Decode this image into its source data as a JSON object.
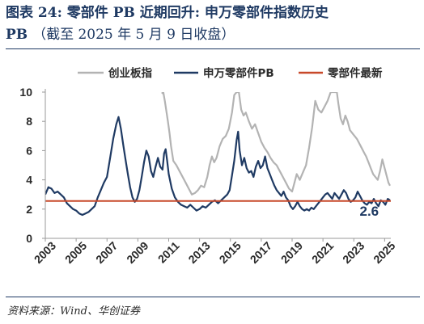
{
  "header": {
    "title_main": "图表 24:  零部件 PB 近期回升:  申万零部件指数历史",
    "title_prefix": "PB",
    "title_note": "（截至 2025 年 5 月 9 日收盘）"
  },
  "footer": {
    "source": "资料来源：Wind、华创证券"
  },
  "chart_data": {
    "type": "line",
    "title": "图表 24:  零部件 PB 近期回升:  申万零部件指数历史 PB（截至 2025 年 5 月 9 日收盘）",
    "xlabel": "",
    "ylabel": "",
    "xlim": [
      2003,
      2025.4
    ],
    "ylim": [
      0,
      10
    ],
    "x_ticks": [
      "2003",
      "2005",
      "2007",
      "2009",
      "2011",
      "2013",
      "2015",
      "2017",
      "2019",
      "2021",
      "2023",
      "2025"
    ],
    "y_ticks": [
      "0",
      "2",
      "4",
      "6",
      "8",
      "10"
    ],
    "grid": false,
    "legend_position": "top",
    "annotations": [
      {
        "text": "2.6",
        "x": 2024.0,
        "y": 2.2
      }
    ],
    "series": [
      {
        "name": "创业板指",
        "color": "#b3b3b3",
        "x": [
          2010.55,
          2010.65,
          2010.75,
          2010.85,
          2010.95,
          2011.05,
          2011.15,
          2011.3,
          2011.5,
          2011.7,
          2011.9,
          2012.1,
          2012.3,
          2012.5,
          2012.7,
          2012.9,
          2013.1,
          2013.3,
          2013.5,
          2013.65,
          2013.8,
          2013.95,
          2014.1,
          2014.3,
          2014.5,
          2014.7,
          2014.9,
          2015.1,
          2015.25,
          2015.4,
          2015.55,
          2015.7,
          2015.85,
          2016.0,
          2016.2,
          2016.4,
          2016.6,
          2016.8,
          2017.0,
          2017.2,
          2017.4,
          2017.6,
          2017.8,
          2018.0,
          2018.2,
          2018.4,
          2018.6,
          2018.8,
          2019.0,
          2019.15,
          2019.3,
          2019.5,
          2019.7,
          2019.9,
          2020.1,
          2020.3,
          2020.5,
          2020.7,
          2020.9,
          2021.1,
          2021.3,
          2021.5,
          2021.7,
          2021.9,
          2022.0,
          2022.15,
          2022.3,
          2022.45,
          2022.6,
          2022.75,
          2022.9,
          2023.05,
          2023.2,
          2023.35,
          2023.5,
          2023.65,
          2023.8,
          2023.95,
          2024.1,
          2024.25,
          2024.4,
          2024.55,
          2024.7,
          2024.85,
          2024.95,
          2025.05,
          2025.15,
          2025.25,
          2025.35
        ],
        "values": [
          9.9,
          10,
          9.4,
          8.7,
          8.0,
          7.2,
          6.3,
          5.3,
          5.0,
          4.6,
          4.2,
          3.8,
          3.4,
          3.0,
          3.1,
          3.3,
          3.6,
          3.5,
          4.2,
          5.0,
          5.6,
          5.2,
          5.5,
          6.3,
          6.8,
          7.0,
          7.5,
          8.6,
          9.8,
          10,
          10,
          8.8,
          8.4,
          8.6,
          8.0,
          7.5,
          7.8,
          7.2,
          6.6,
          6.2,
          5.9,
          5.5,
          5.2,
          5.0,
          4.6,
          4.2,
          3.8,
          3.4,
          3.2,
          3.8,
          4.4,
          4.0,
          4.5,
          5.0,
          6.2,
          7.6,
          9.4,
          8.8,
          8.6,
          9.0,
          9.4,
          10,
          10,
          10,
          9.2,
          8.2,
          7.8,
          8.4,
          8.0,
          7.4,
          7.2,
          7.0,
          6.8,
          6.5,
          6.2,
          5.9,
          5.6,
          5.2,
          4.8,
          4.4,
          4.2,
          4.0,
          4.6,
          5.4,
          5.0,
          4.6,
          4.2,
          3.8,
          3.6
        ]
      },
      {
        "name": "申万零部件PB",
        "color": "#1f3a63",
        "x": [
          2003.0,
          2003.2,
          2003.4,
          2003.6,
          2003.8,
          2004.0,
          2004.2,
          2004.4,
          2004.6,
          2004.8,
          2005.0,
          2005.2,
          2005.4,
          2005.6,
          2005.8,
          2006.0,
          2006.2,
          2006.4,
          2006.6,
          2006.8,
          2007.0,
          2007.2,
          2007.4,
          2007.6,
          2007.75,
          2007.9,
          2008.05,
          2008.2,
          2008.35,
          2008.5,
          2008.65,
          2008.8,
          2008.95,
          2009.1,
          2009.25,
          2009.4,
          2009.55,
          2009.7,
          2009.85,
          2010.0,
          2010.15,
          2010.3,
          2010.45,
          2010.6,
          2010.7,
          2010.8,
          2010.9,
          2011.0,
          2011.2,
          2011.4,
          2011.6,
          2011.8,
          2012.0,
          2012.2,
          2012.4,
          2012.6,
          2012.8,
          2013.0,
          2013.2,
          2013.4,
          2013.6,
          2013.8,
          2014.0,
          2014.2,
          2014.4,
          2014.6,
          2014.8,
          2014.95,
          2015.1,
          2015.25,
          2015.4,
          2015.5,
          2015.6,
          2015.75,
          2015.9,
          2016.05,
          2016.2,
          2016.35,
          2016.5,
          2016.65,
          2016.8,
          2016.95,
          2017.1,
          2017.25,
          2017.4,
          2017.55,
          2017.7,
          2017.85,
          2018.0,
          2018.15,
          2018.3,
          2018.45,
          2018.6,
          2018.75,
          2018.9,
          2019.05,
          2019.2,
          2019.35,
          2019.5,
          2019.65,
          2019.8,
          2019.95,
          2020.1,
          2020.25,
          2020.4,
          2020.55,
          2020.7,
          2020.85,
          2021.0,
          2021.15,
          2021.3,
          2021.45,
          2021.6,
          2021.75,
          2021.9,
          2022.05,
          2022.2,
          2022.35,
          2022.5,
          2022.65,
          2022.8,
          2022.95,
          2023.1,
          2023.25,
          2023.4,
          2023.55,
          2023.7,
          2023.85,
          2024.0,
          2024.15,
          2024.3,
          2024.45,
          2024.6,
          2024.75,
          2024.9,
          2025.05,
          2025.2,
          2025.35
        ],
        "values": [
          3.0,
          3.5,
          3.4,
          3.1,
          3.2,
          3.0,
          2.8,
          2.4,
          2.2,
          2.0,
          1.9,
          1.7,
          1.6,
          1.7,
          1.8,
          2.0,
          2.2,
          2.8,
          3.3,
          3.8,
          4.2,
          5.5,
          6.8,
          7.8,
          8.3,
          7.5,
          6.4,
          5.4,
          4.4,
          3.5,
          2.8,
          2.5,
          2.7,
          3.3,
          4.2,
          5.2,
          6.0,
          5.6,
          4.6,
          4.2,
          4.9,
          5.5,
          4.9,
          4.7,
          5.8,
          6.1,
          5.3,
          4.4,
          3.4,
          2.8,
          2.5,
          2.3,
          2.2,
          2.1,
          2.3,
          2.1,
          1.9,
          2.0,
          2.2,
          2.1,
          2.3,
          2.5,
          2.6,
          2.4,
          2.6,
          2.8,
          3.0,
          3.3,
          4.3,
          5.3,
          6.7,
          7.3,
          6.0,
          5.0,
          5.5,
          4.8,
          4.5,
          4.6,
          4.2,
          4.9,
          5.3,
          4.8,
          5.0,
          5.6,
          4.8,
          4.4,
          4.0,
          3.6,
          3.3,
          3.1,
          2.9,
          3.2,
          2.8,
          2.6,
          2.2,
          2.0,
          2.2,
          2.5,
          2.2,
          2.0,
          1.9,
          2.0,
          1.9,
          2.1,
          2.0,
          2.2,
          2.4,
          2.6,
          2.8,
          3.0,
          3.1,
          2.9,
          2.7,
          3.1,
          2.9,
          2.7,
          3.0,
          3.3,
          3.1,
          2.7,
          2.5,
          2.6,
          2.8,
          3.2,
          2.9,
          2.6,
          2.4,
          2.3,
          2.5,
          2.4,
          2.7,
          2.4,
          2.2,
          2.6,
          2.5,
          2.3,
          2.7,
          2.6
        ]
      },
      {
        "name": "零部件最新",
        "color": "#c8492a",
        "x": [
          2003.0,
          2025.4
        ],
        "values": [
          2.55,
          2.55
        ]
      }
    ]
  }
}
